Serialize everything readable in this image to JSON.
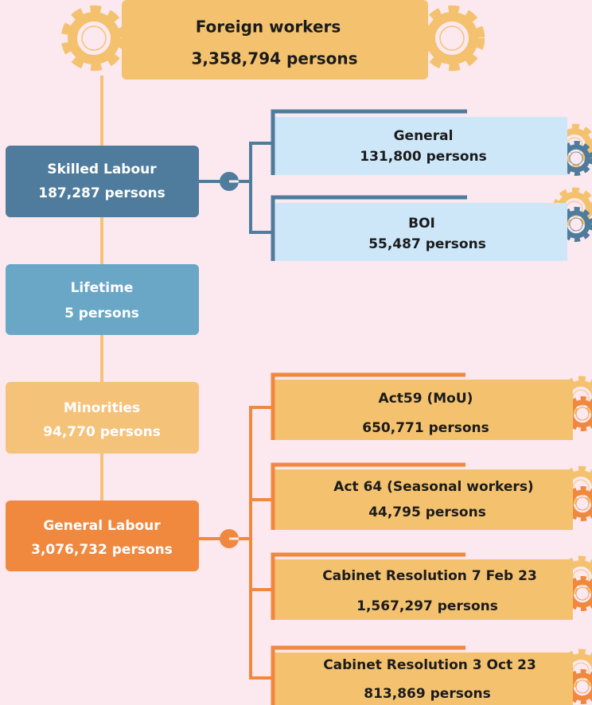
{
  "header": {
    "title": "Foreign workers",
    "total": "3,358,794 persons"
  },
  "categories": [
    {
      "label": "Skilled Labour",
      "value": "187,287 persons",
      "children": [
        {
          "label": "General",
          "value": "131,800 persons"
        },
        {
          "label": "BOI",
          "value": "55,487 persons"
        }
      ]
    },
    {
      "label": "Lifetime",
      "value": "5 persons"
    },
    {
      "label": "Minorities",
      "value": "94,770 persons"
    },
    {
      "label": "General Labour",
      "value": "3,076,732 persons",
      "children": [
        {
          "label": "Act59 (MoU)",
          "value": "650,771 persons"
        },
        {
          "label": "Act 64 (Seasonal workers)",
          "value": "44,795 persons"
        },
        {
          "label": "Cabinet Resolution 7 Feb 23",
          "value": "1,567,297 persons"
        },
        {
          "label": "Cabinet Resolution 3 Oct 23",
          "value": "813,869 persons"
        }
      ]
    }
  ]
}
